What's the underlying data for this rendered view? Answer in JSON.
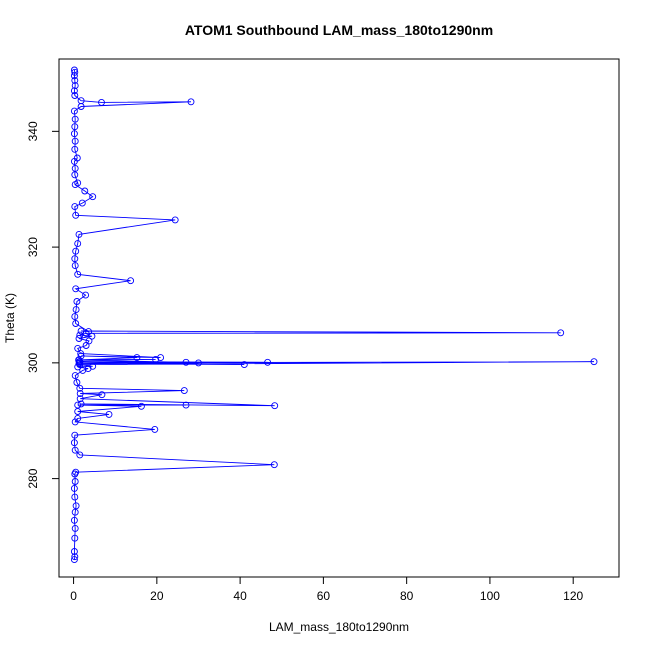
{
  "chart_data": {
    "type": "line",
    "title": "ATOM1 Southbound LAM_mass_180to1290nm",
    "xlabel": "LAM_mass_180to1290nm",
    "ylabel": "Theta (K)",
    "xlim": [
      -3.5,
      131.0
    ],
    "ylim": [
      263.0,
      352.5
    ],
    "x_ticks": [
      0,
      20,
      40,
      60,
      80,
      100,
      120
    ],
    "y_ticks": [
      280,
      300,
      320,
      340
    ],
    "grid": false,
    "legend": null,
    "series_color": "#0000ff",
    "series": [
      {
        "points": [
          [
            0.2,
            266.0
          ],
          [
            0.3,
            266.5
          ],
          [
            0.2,
            267.4
          ],
          [
            0.3,
            269.7
          ],
          [
            0.4,
            271.4
          ],
          [
            0.2,
            272.8
          ],
          [
            0.4,
            274.2
          ],
          [
            0.6,
            275.3
          ],
          [
            0.3,
            276.8
          ],
          [
            0.2,
            278.3
          ],
          [
            0.4,
            279.5
          ],
          [
            0.3,
            280.8
          ],
          [
            0.5,
            281.1
          ],
          [
            48.2,
            282.4
          ],
          [
            1.5,
            284.1
          ],
          [
            0.4,
            284.9
          ],
          [
            0.2,
            286.2
          ],
          [
            0.3,
            287.5
          ],
          [
            19.5,
            288.5
          ],
          [
            0.4,
            289.8
          ],
          [
            1.0,
            290.4
          ],
          [
            8.5,
            291.1
          ],
          [
            1.0,
            291.6
          ],
          [
            16.3,
            292.5
          ],
          [
            1.0,
            292.7
          ],
          [
            27.0,
            292.7
          ],
          [
            1.8,
            292.9
          ],
          [
            48.3,
            292.6
          ],
          [
            1.6,
            293.8
          ],
          [
            6.8,
            294.5
          ],
          [
            1.6,
            294.7
          ],
          [
            26.6,
            295.2
          ],
          [
            1.5,
            295.6
          ],
          [
            0.8,
            296.6
          ],
          [
            0.4,
            297.8
          ],
          [
            2.2,
            298.7
          ],
          [
            3.5,
            299.0
          ],
          [
            1.0,
            299.3
          ],
          [
            4.6,
            299.4
          ],
          [
            1.5,
            299.7
          ],
          [
            125.0,
            300.2
          ],
          [
            1.5,
            300.0
          ],
          [
            46.6,
            300.1
          ],
          [
            1.5,
            300.2
          ],
          [
            41.0,
            299.7
          ],
          [
            1.3,
            299.9
          ],
          [
            30.0,
            300.0
          ],
          [
            1.4,
            300.2
          ],
          [
            27.0,
            300.1
          ],
          [
            1.2,
            300.5
          ],
          [
            19.7,
            300.6
          ],
          [
            1.3,
            300.5
          ],
          [
            15.2,
            300.9
          ],
          [
            1.8,
            301.2
          ],
          [
            20.9,
            300.9
          ],
          [
            1.7,
            301.6
          ],
          [
            1.0,
            302.5
          ],
          [
            3.0,
            303.0
          ],
          [
            3.7,
            303.8
          ],
          [
            1.3,
            304.2
          ],
          [
            4.4,
            304.6
          ],
          [
            1.5,
            304.8
          ],
          [
            3.0,
            305.1
          ],
          [
            117.0,
            305.2
          ],
          [
            1.8,
            305.5
          ],
          [
            3.6,
            305.4
          ],
          [
            0.5,
            306.8
          ],
          [
            0.3,
            308.0
          ],
          [
            0.6,
            309.2
          ],
          [
            0.8,
            310.6
          ],
          [
            2.9,
            311.7
          ],
          [
            0.5,
            312.8
          ],
          [
            13.7,
            314.2
          ],
          [
            1.0,
            315.3
          ],
          [
            0.4,
            316.8
          ],
          [
            0.3,
            318.0
          ],
          [
            0.5,
            319.3
          ],
          [
            1.0,
            320.6
          ],
          [
            1.3,
            322.2
          ],
          [
            24.4,
            324.7
          ],
          [
            0.5,
            325.5
          ],
          [
            0.3,
            327.0
          ],
          [
            2.1,
            327.6
          ],
          [
            4.6,
            328.7
          ],
          [
            2.7,
            329.7
          ],
          [
            0.4,
            330.8
          ],
          [
            1.0,
            331.1
          ],
          [
            0.3,
            332.5
          ],
          [
            0.4,
            333.6
          ],
          [
            0.2,
            334.8
          ],
          [
            0.9,
            335.4
          ],
          [
            0.3,
            336.9
          ],
          [
            0.4,
            338.3
          ],
          [
            0.2,
            339.6
          ],
          [
            0.3,
            340.8
          ],
          [
            0.4,
            342.1
          ],
          [
            0.2,
            343.5
          ],
          [
            1.8,
            344.3
          ],
          [
            28.2,
            345.1
          ],
          [
            6.7,
            345.0
          ],
          [
            1.8,
            345.3
          ],
          [
            0.3,
            346.2
          ],
          [
            0.2,
            347.0
          ],
          [
            0.4,
            347.9
          ],
          [
            0.3,
            348.8
          ],
          [
            0.2,
            349.6
          ],
          [
            0.3,
            350.2
          ],
          [
            0.2,
            350.6
          ]
        ]
      }
    ]
  }
}
